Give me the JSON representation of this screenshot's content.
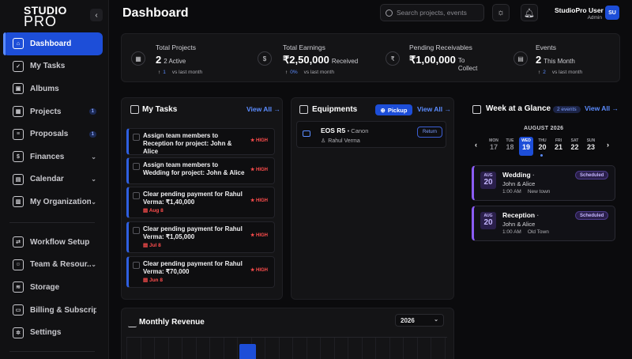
{
  "brand": {
    "logo_line1": "STUDIO",
    "logo_line2": "PRO"
  },
  "sidebar": {
    "collapse_icon": "chevron-left-icon",
    "items": [
      {
        "label": "Dashboard",
        "icon": "home-icon",
        "active": true,
        "badge": "",
        "chevron": false
      },
      {
        "label": "My Tasks",
        "icon": "checklist-icon",
        "active": false,
        "badge": "",
        "chevron": false
      },
      {
        "label": "Albums",
        "icon": "image-icon",
        "active": false,
        "badge": "",
        "chevron": false
      },
      {
        "label": "Projects",
        "icon": "grid-icon",
        "active": false,
        "badge": "1",
        "chevron": false
      },
      {
        "label": "Proposals",
        "icon": "document-icon",
        "active": false,
        "badge": "1",
        "chevron": false
      },
      {
        "label": "Finances",
        "icon": "dollar-icon",
        "active": false,
        "badge": "",
        "chevron": true
      },
      {
        "label": "Calendar",
        "icon": "calendar-icon",
        "active": false,
        "badge": "",
        "chevron": true
      },
      {
        "label": "My Organization",
        "icon": "building-icon",
        "active": false,
        "badge": "",
        "chevron": true
      }
    ],
    "bottom_items": [
      {
        "label": "Workflow Setup",
        "icon": "workflow-icon",
        "chevron": false
      },
      {
        "label": "Team & Resour...",
        "icon": "team-icon",
        "chevron": true
      },
      {
        "label": "Storage",
        "icon": "database-icon",
        "chevron": false
      },
      {
        "label": "Billing & Subscrip...",
        "icon": "card-icon",
        "chevron": false
      },
      {
        "label": "Settings",
        "icon": "gear-icon",
        "chevron": false
      }
    ]
  },
  "header": {
    "title": "Dashboard",
    "search_placeholder": "Search projects, events",
    "user_name": "StudioPro User",
    "user_role": "Admin",
    "avatar_initials": "SU"
  },
  "stats": [
    {
      "title": "Total Projects",
      "value": "2",
      "sub": "2 Active",
      "trend": "1",
      "trend_label": "vs last month",
      "icon": "grid-icon"
    },
    {
      "title": "Total Earnings",
      "value": "₹2,50,000",
      "sub": "Received",
      "trend": "0%",
      "trend_label": "vs last month",
      "icon": "dollar-icon"
    },
    {
      "title": "Pending Receivables",
      "value": "₹1,00,000",
      "sub": "To Collect",
      "trend": "",
      "trend_label": "",
      "icon": "rupee-icon"
    },
    {
      "title": "Events",
      "value": "2",
      "sub": "This Month",
      "trend": "2",
      "trend_label": "vs last month",
      "icon": "calendar-icon"
    }
  ],
  "tasks_panel": {
    "title": "My Tasks",
    "view_all": "View All →",
    "tasks": [
      {
        "text": "Assign team members to Reception for project: John & Alice",
        "priority": "HIGH",
        "due": ""
      },
      {
        "text": "Assign team members to Wedding for project: John & Alice",
        "priority": "HIGH",
        "due": ""
      },
      {
        "text": "Clear pending payment for Rahul Verma: ₹1,40,000",
        "priority": "HIGH",
        "due": "Aug 8"
      },
      {
        "text": "Clear pending payment for Rahul Verma: ₹1,05,000",
        "priority": "HIGH",
        "due": "Jul 8"
      },
      {
        "text": "Clear pending payment for Rahul Verma: ₹70,000",
        "priority": "HIGH",
        "due": "Jun 8"
      }
    ]
  },
  "equipment_panel": {
    "title": "Equipments",
    "pickup_label": "Pickup",
    "view_all": "View All →",
    "items": [
      {
        "name": "EOS R5",
        "brand": "• Canon",
        "user": "Rahul Verma",
        "action": "Return"
      }
    ]
  },
  "week_panel": {
    "title": "Week at a Glance",
    "badge": "2 events",
    "view_all": "View All →",
    "month": "AUGUST 2026",
    "days": [
      {
        "name": "MON",
        "date": "17",
        "muted": true,
        "selected": false,
        "dot": false
      },
      {
        "name": "TUE",
        "date": "18",
        "muted": true,
        "selected": false,
        "dot": false
      },
      {
        "name": "WED",
        "date": "19",
        "muted": false,
        "selected": true,
        "dot": false
      },
      {
        "name": "THU",
        "date": "20",
        "muted": false,
        "selected": false,
        "dot": true
      },
      {
        "name": "FRI",
        "date": "21",
        "muted": false,
        "selected": false,
        "dot": false
      },
      {
        "name": "SAT",
        "date": "22",
        "muted": false,
        "selected": false,
        "dot": false
      },
      {
        "name": "SUN",
        "date": "23",
        "muted": false,
        "selected": false,
        "dot": false
      }
    ],
    "events": [
      {
        "month": "AUG",
        "day": "20",
        "title": "Wedding",
        "client": "John & Alice",
        "time": "1:00 AM",
        "location": "New town",
        "status": "Scheduled"
      },
      {
        "month": "AUG",
        "day": "20",
        "title": "Reception",
        "client": "John & Alice",
        "time": "1:00 AM",
        "location": "Old Town",
        "status": "Scheduled"
      }
    ]
  },
  "revenue_panel": {
    "title": "Monthly Revenue",
    "year": "2026"
  },
  "colors": {
    "accent": "#1d4ed8",
    "high_priority": "#ff4d4d",
    "event_accent": "#8b5cf6"
  }
}
